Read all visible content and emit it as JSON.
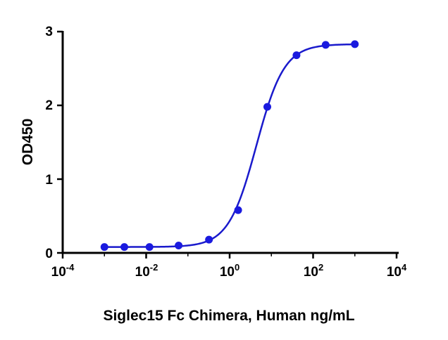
{
  "chart_data": {
    "type": "scatter",
    "xlabel": "Siglec15 Fc Chimera, Human  ng/mL",
    "ylabel": "OD450",
    "x_scale": "log",
    "xlim": [
      0.0001,
      10000
    ],
    "ylim": [
      0,
      3
    ],
    "x_ticks": [
      {
        "base": "10",
        "exp": "-4"
      },
      {
        "base": "10",
        "exp": "-2"
      },
      {
        "base": "10",
        "exp": "0"
      },
      {
        "base": "10",
        "exp": "2"
      },
      {
        "base": "10",
        "exp": "4"
      }
    ],
    "y_ticks": [
      "0",
      "1",
      "2",
      "3"
    ],
    "grid": false,
    "series": [
      {
        "x": [
          0.001,
          0.003,
          0.012,
          0.06,
          0.32,
          1.6,
          8,
          40,
          200,
          1000
        ],
        "y": [
          0.08,
          0.08,
          0.08,
          0.1,
          0.18,
          0.58,
          1.98,
          2.68,
          2.82,
          2.83
        ],
        "color": "#1a1adf"
      }
    ]
  }
}
